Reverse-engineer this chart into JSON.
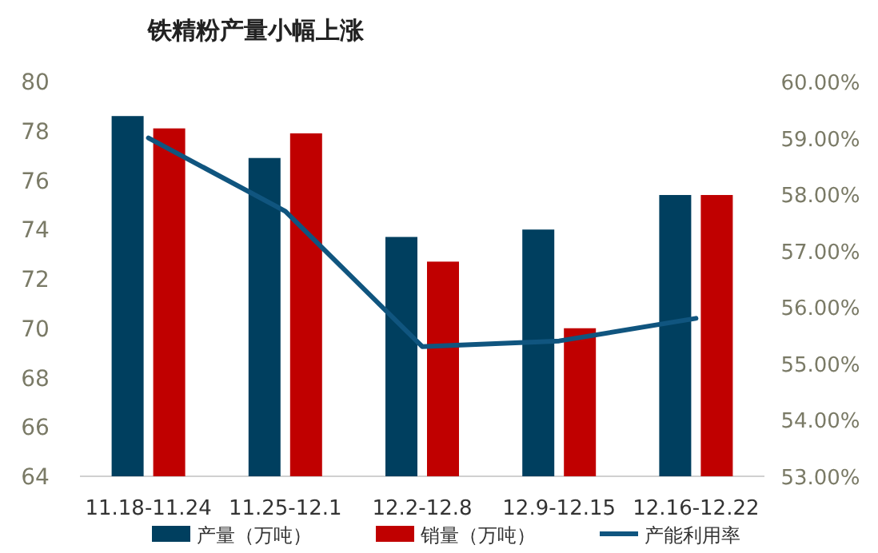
{
  "chart_data": {
    "type": "bar",
    "title": "铁精粉产量小幅上涨",
    "categories": [
      "11.18-11.24",
      "11.25-12.1",
      "12.2-12.8",
      "12.9-12.15",
      "12.16-12.22"
    ],
    "series": [
      {
        "name": "产量（万吨）",
        "color": "#003f5f",
        "values": [
          78.6,
          76.9,
          73.7,
          74.0,
          75.4
        ]
      },
      {
        "name": "销量（万吨）",
        "color": "#c00000",
        "values": [
          78.1,
          77.9,
          72.7,
          70.0,
          75.4
        ]
      },
      {
        "name": "产能利用率",
        "type": "line",
        "axis": "y2",
        "color": "#10557f",
        "values": [
          59.0,
          57.7,
          55.3,
          55.4,
          55.8
        ]
      }
    ],
    "ylim": [
      64,
      80
    ],
    "yticks": [
      64,
      66,
      68,
      70,
      72,
      74,
      76,
      78,
      80
    ],
    "y2lim": [
      53,
      60
    ],
    "y2ticks": [
      {
        "value": 53,
        "label": "53.00%"
      },
      {
        "value": 54,
        "label": "54.00%"
      },
      {
        "value": 55,
        "label": "55.00%"
      },
      {
        "value": 56,
        "label": "56.00%"
      },
      {
        "value": 57,
        "label": "57.00%"
      },
      {
        "value": 58,
        "label": "58.00%"
      },
      {
        "value": 59,
        "label": "59.00%"
      },
      {
        "value": 60,
        "label": "60.00%"
      }
    ],
    "legend": "bottom"
  }
}
